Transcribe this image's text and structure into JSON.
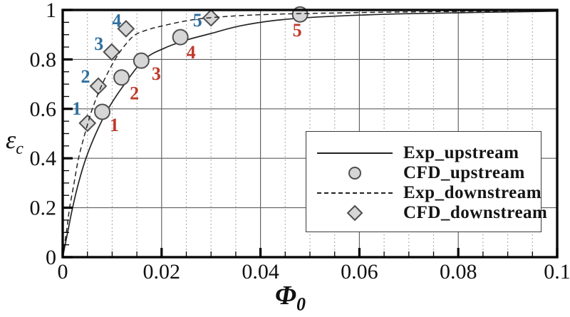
{
  "figure": {
    "background": "#ffffff"
  },
  "chart_data": {
    "type": "line",
    "title": "",
    "xlabel": {
      "symbol": "Φ",
      "sub": "0"
    },
    "ylabel": {
      "symbol": "ε",
      "sub": "c"
    },
    "xlim": [
      0,
      0.1
    ],
    "ylim": [
      0,
      1
    ],
    "x_major_tick_step": 0.02,
    "x_minor_tick_step": 0.005,
    "y_major_tick_step": 0.2,
    "y_minor_tick_step": 0.05,
    "x_ticks": [
      {
        "v": 0,
        "label": "0"
      },
      {
        "v": 0.02,
        "label": "0.02"
      },
      {
        "v": 0.04,
        "label": "0.04"
      },
      {
        "v": 0.06,
        "label": "0.06"
      },
      {
        "v": 0.08,
        "label": "0.08"
      },
      {
        "v": 0.1,
        "label": "0.1"
      }
    ],
    "y_ticks": [
      {
        "v": 0,
        "label": "0"
      },
      {
        "v": 0.2,
        "label": "0.2"
      },
      {
        "v": 0.4,
        "label": "0.4"
      },
      {
        "v": 0.6,
        "label": "0.6"
      },
      {
        "v": 0.8,
        "label": "0.8"
      },
      {
        "v": 1,
        "label": "1"
      }
    ],
    "grid": {
      "vertical_major": "solid",
      "vertical_minor": "dotted",
      "horizontal_major": "solid",
      "horizontal_minor": "none"
    },
    "colors": {
      "frame": "#0a0a0a",
      "grid_major": "#5f5f5f",
      "grid_minor": "#9a9a9a",
      "curve": "#262626",
      "marker_fill": "#d6d6d6",
      "marker_stroke": "#4f4f4f",
      "upstream_label": "#c0392b",
      "downstream_label": "#2e6f9f",
      "tick_label": "#111111"
    },
    "series": [
      {
        "name": "Exp_upstream",
        "type": "line",
        "line_style": "solid",
        "points": [
          [
            0,
            0
          ],
          [
            0.001,
            0.1
          ],
          [
            0.002,
            0.2
          ],
          [
            0.0032,
            0.3
          ],
          [
            0.0047,
            0.4
          ],
          [
            0.0067,
            0.5
          ],
          [
            0.0092,
            0.6
          ],
          [
            0.0125,
            0.7
          ],
          [
            0.0165,
            0.8
          ],
          [
            0.0205,
            0.845
          ],
          [
            0.025,
            0.878
          ],
          [
            0.03,
            0.905
          ],
          [
            0.036,
            0.936
          ],
          [
            0.044,
            0.96
          ],
          [
            0.055,
            0.975
          ],
          [
            0.07,
            0.985
          ],
          [
            0.1,
            0.995
          ]
        ]
      },
      {
        "name": "CFD_upstream",
        "type": "scatter",
        "marker": "circle",
        "points": [
          {
            "x": 0.008,
            "y": 0.588,
            "label": "1",
            "label_dx": 17,
            "label_dy": 18
          },
          {
            "x": 0.0119,
            "y": 0.727,
            "label": "2",
            "label_dx": 18,
            "label_dy": 22
          },
          {
            "x": 0.0159,
            "y": 0.795,
            "label": "3",
            "label_dx": 21,
            "label_dy": 18
          },
          {
            "x": 0.0238,
            "y": 0.89,
            "label": "4",
            "label_dx": 15,
            "label_dy": 21
          },
          {
            "x": 0.048,
            "y": 0.982,
            "label": "5",
            "label_dx": -4,
            "label_dy": 22
          }
        ]
      },
      {
        "name": "Exp_downstream",
        "type": "line",
        "line_style": "dashed",
        "points": [
          [
            0,
            0
          ],
          [
            0.0008,
            0.11
          ],
          [
            0.0014,
            0.2
          ],
          [
            0.0023,
            0.3
          ],
          [
            0.0032,
            0.4
          ],
          [
            0.0045,
            0.5
          ],
          [
            0.006,
            0.6
          ],
          [
            0.008,
            0.7
          ],
          [
            0.0106,
            0.8
          ],
          [
            0.0127,
            0.86
          ],
          [
            0.0147,
            0.9
          ],
          [
            0.0175,
            0.922
          ],
          [
            0.02,
            0.935
          ],
          [
            0.025,
            0.956
          ],
          [
            0.03,
            0.969
          ],
          [
            0.04,
            0.981
          ],
          [
            0.055,
            0.988
          ],
          [
            0.075,
            0.993
          ],
          [
            0.1,
            0.997
          ]
        ]
      },
      {
        "name": "CFD_downstream",
        "type": "scatter",
        "marker": "diamond",
        "points": [
          {
            "x": 0.005,
            "y": 0.542,
            "label": "1",
            "label_dx": -15,
            "label_dy": -21
          },
          {
            "x": 0.0072,
            "y": 0.692,
            "label": "2",
            "label_dx": -18,
            "label_dy": -14
          },
          {
            "x": 0.0099,
            "y": 0.83,
            "label": "3",
            "label_dx": -18,
            "label_dy": -12
          },
          {
            "x": 0.0128,
            "y": 0.924,
            "label": "4",
            "label_dx": -13,
            "label_dy": -12
          },
          {
            "x": 0.03,
            "y": 0.968,
            "label": "5",
            "label_dx": -19,
            "label_dy": 3
          }
        ]
      }
    ],
    "legend": {
      "position": "lower-right",
      "entries": [
        {
          "label": "Exp_upstream",
          "sample": "solid-line"
        },
        {
          "label": "CFD_upstream",
          "sample": "circle-marker"
        },
        {
          "label": "Exp_downstream",
          "sample": "dashed-line"
        },
        {
          "label": "CFD_downstream",
          "sample": "diamond-marker"
        }
      ]
    }
  }
}
